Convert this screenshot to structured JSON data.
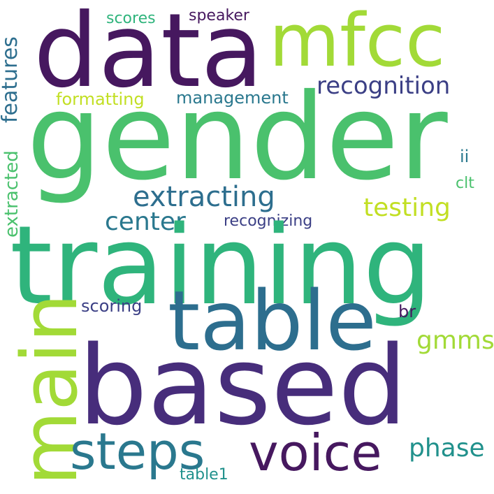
{
  "colors": {
    "background": "#ffffff",
    "dark_purple": "#46185f",
    "purple": "#472d7b",
    "indigo": "#3b3f85",
    "steel_blue": "#2d6e8e",
    "teal_blue": "#2a788e",
    "teal": "#21918c",
    "sea_green": "#2fb47c",
    "green": "#4ac16d",
    "lime": "#a2da37",
    "yellow_green": "#c2df23"
  },
  "words": {
    "gender": "gender",
    "training": "training",
    "data": "data",
    "mfcc": "mfcc",
    "based": "based",
    "table": "table",
    "main": "main",
    "voice": "voice",
    "steps": "steps",
    "features": "features",
    "recognition": "recognition",
    "extracting": "extracting",
    "testing": "testing",
    "center": "center",
    "phase": "phase",
    "gmms": "gmms",
    "extracted": "extracted",
    "management": "management",
    "formatting": "formatting",
    "recognizing": "recognizing",
    "scoring": "scoring",
    "scores": "scores",
    "speaker": "speaker",
    "ii": "ii",
    "clt": "clt",
    "br": "br",
    "table1": "table1"
  }
}
